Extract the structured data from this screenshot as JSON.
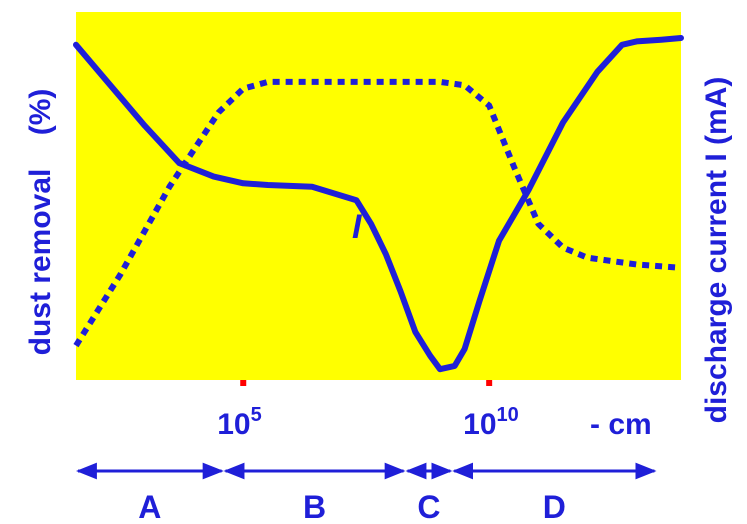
{
  "chart_data": {
    "type": "line",
    "xlabel": "- cm",
    "ylabel_left": "dust removal    (%)",
    "ylabel_right": "discharge current I (mA)",
    "x_ticks": [
      {
        "base": "10",
        "exp": "5",
        "x": 5
      },
      {
        "base": "10",
        "exp": "10",
        "x": 10
      }
    ],
    "xlim": [
      1.6,
      13.9
    ],
    "ylim": [
      0,
      100
    ],
    "grid": false,
    "colors": {
      "plot_bg": "#ffff00",
      "line": "#1f1fd8",
      "tick_mark": "#ff0000"
    },
    "series": [
      {
        "name": "",
        "style": "dotted",
        "x": [
          1.6,
          2.5,
          3.5,
          4.5,
          5.0,
          5.5,
          7.0,
          8.0,
          9.0,
          9.5,
          10.0,
          10.5,
          11.0,
          11.5,
          12.0,
          13.0,
          13.9
        ],
        "y": [
          9,
          30,
          56,
          78,
          85,
          87,
          87,
          87,
          87,
          86,
          80,
          62,
          45,
          38,
          35,
          33,
          32
        ]
      },
      {
        "name": "I",
        "style": "solid",
        "x": [
          1.6,
          2.3,
          3.0,
          3.7,
          4.4,
          5.0,
          5.5,
          6.4,
          7.3,
          7.6,
          7.9,
          8.2,
          8.5,
          8.8,
          9.0,
          9.3,
          9.5,
          9.8,
          10.2,
          10.8,
          11.5,
          12.2,
          12.7,
          13.0,
          13.5,
          13.9
        ],
        "y": [
          98,
          86,
          74,
          63,
          59,
          57,
          56.5,
          56,
          52,
          45,
          36,
          25,
          13,
          6,
          2,
          3,
          8,
          22,
          40,
          55,
          75,
          90,
          98,
          99,
          99.5,
          100
        ]
      }
    ],
    "curve_label": "I",
    "regions": [
      {
        "label": "A",
        "x_start": 1.6,
        "x_end": 4.6
      },
      {
        "label": "B",
        "x_start": 4.6,
        "x_end": 8.3
      },
      {
        "label": "C",
        "x_start": 8.3,
        "x_end": 9.25
      },
      {
        "label": "D",
        "x_start": 9.25,
        "x_end": 13.4
      }
    ]
  }
}
